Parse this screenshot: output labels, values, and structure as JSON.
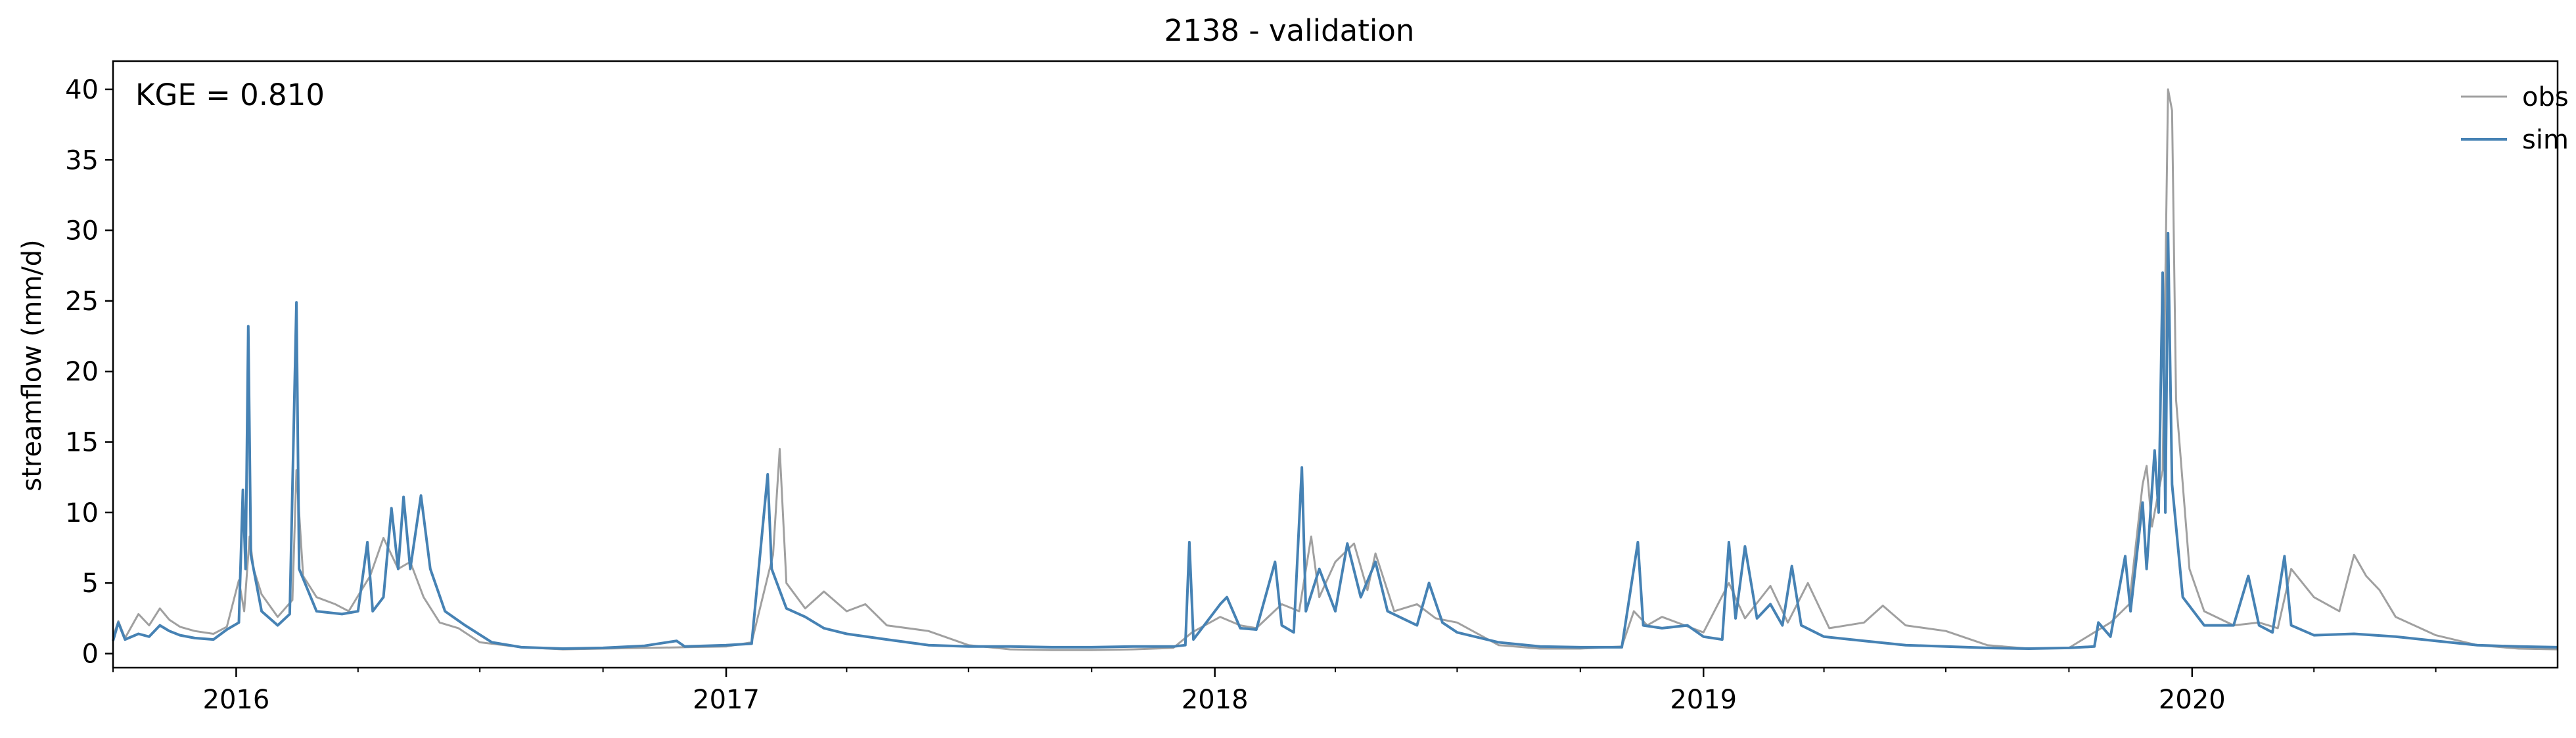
{
  "chart_data": {
    "type": "line",
    "title": "2138 - validation",
    "xlabel": "",
    "ylabel": "streamflow (mm/d)",
    "xlim": [
      "2015-10-01",
      "2020-09-30"
    ],
    "ylim": [
      -1,
      42
    ],
    "y_ticks": [
      0,
      5,
      10,
      15,
      20,
      25,
      30,
      35,
      40
    ],
    "x_ticks": [
      {
        "date": "2016-01-01",
        "label": "2016"
      },
      {
        "date": "2017-01-01",
        "label": "2017"
      },
      {
        "date": "2018-01-01",
        "label": "2018"
      },
      {
        "date": "2019-01-01",
        "label": "2019"
      },
      {
        "date": "2020-01-01",
        "label": "2020"
      }
    ],
    "grid": false,
    "legend_position": "top-right",
    "annotation": "KGE = 0.810",
    "series": [
      {
        "name": "obs",
        "color": "#a0a0a0",
        "points": [
          [
            "2015-10-01",
            1.2
          ],
          [
            "2015-10-05",
            2.3
          ],
          [
            "2015-10-10",
            1.1
          ],
          [
            "2015-10-20",
            2.8
          ],
          [
            "2015-10-28",
            2.0
          ],
          [
            "2015-11-05",
            3.2
          ],
          [
            "2015-11-12",
            2.4
          ],
          [
            "2015-11-20",
            1.9
          ],
          [
            "2015-12-01",
            1.6
          ],
          [
            "2015-12-15",
            1.4
          ],
          [
            "2015-12-25",
            1.9
          ],
          [
            "2016-01-03",
            5.2
          ],
          [
            "2016-01-07",
            3.0
          ],
          [
            "2016-01-11",
            8.3
          ],
          [
            "2016-01-14",
            6.0
          ],
          [
            "2016-01-20",
            4.2
          ],
          [
            "2016-02-01",
            2.6
          ],
          [
            "2016-02-12",
            3.8
          ],
          [
            "2016-02-15",
            13.0
          ],
          [
            "2016-02-20",
            5.5
          ],
          [
            "2016-03-01",
            4.0
          ],
          [
            "2016-03-15",
            3.5
          ],
          [
            "2016-03-25",
            3.0
          ],
          [
            "2016-04-10",
            5.5
          ],
          [
            "2016-04-20",
            8.2
          ],
          [
            "2016-05-01",
            6.0
          ],
          [
            "2016-05-10",
            6.5
          ],
          [
            "2016-05-20",
            4.0
          ],
          [
            "2016-06-01",
            2.2
          ],
          [
            "2016-06-15",
            1.8
          ],
          [
            "2016-07-01",
            0.8
          ],
          [
            "2016-08-01",
            0.45
          ],
          [
            "2016-09-01",
            0.3
          ],
          [
            "2016-10-01",
            0.35
          ],
          [
            "2016-11-01",
            0.4
          ],
          [
            "2016-12-01",
            0.45
          ],
          [
            "2017-01-01",
            0.5
          ],
          [
            "2017-01-20",
            0.8
          ],
          [
            "2017-02-05",
            7.0
          ],
          [
            "2017-02-10",
            14.5
          ],
          [
            "2017-02-15",
            5.0
          ],
          [
            "2017-03-01",
            3.2
          ],
          [
            "2017-03-15",
            4.4
          ],
          [
            "2017-04-01",
            3.0
          ],
          [
            "2017-04-15",
            3.5
          ],
          [
            "2017-05-01",
            2.0
          ],
          [
            "2017-06-01",
            1.6
          ],
          [
            "2017-07-01",
            0.6
          ],
          [
            "2017-08-01",
            0.3
          ],
          [
            "2017-09-01",
            0.25
          ],
          [
            "2017-10-01",
            0.25
          ],
          [
            "2017-11-01",
            0.3
          ],
          [
            "2017-12-01",
            0.4
          ],
          [
            "2017-12-15",
            1.5
          ],
          [
            "2018-01-05",
            2.6
          ],
          [
            "2018-01-20",
            2.0
          ],
          [
            "2018-02-01",
            1.8
          ],
          [
            "2018-02-20",
            3.5
          ],
          [
            "2018-03-05",
            3.0
          ],
          [
            "2018-03-14",
            8.3
          ],
          [
            "2018-03-20",
            4.0
          ],
          [
            "2018-04-01",
            6.5
          ],
          [
            "2018-04-15",
            7.8
          ],
          [
            "2018-04-25",
            4.5
          ],
          [
            "2018-05-01",
            7.1
          ],
          [
            "2018-05-15",
            3.0
          ],
          [
            "2018-06-01",
            3.5
          ],
          [
            "2018-06-15",
            2.5
          ],
          [
            "2018-07-01",
            2.2
          ],
          [
            "2018-08-01",
            0.6
          ],
          [
            "2018-09-01",
            0.35
          ],
          [
            "2018-10-01",
            0.35
          ],
          [
            "2018-11-01",
            0.5
          ],
          [
            "2018-11-10",
            3.0
          ],
          [
            "2018-11-20",
            2.0
          ],
          [
            "2018-12-01",
            2.6
          ],
          [
            "2019-01-01",
            1.5
          ],
          [
            "2019-01-20",
            5.0
          ],
          [
            "2019-02-01",
            2.5
          ],
          [
            "2019-02-20",
            4.8
          ],
          [
            "2019-03-05",
            2.2
          ],
          [
            "2019-03-20",
            5.0
          ],
          [
            "2019-04-05",
            1.8
          ],
          [
            "2019-05-01",
            2.2
          ],
          [
            "2019-05-15",
            3.4
          ],
          [
            "2019-06-01",
            2.0
          ],
          [
            "2019-07-01",
            1.6
          ],
          [
            "2019-08-01",
            0.6
          ],
          [
            "2019-09-01",
            0.35
          ],
          [
            "2019-10-01",
            0.4
          ],
          [
            "2019-11-01",
            2.2
          ],
          [
            "2019-11-15",
            3.5
          ],
          [
            "2019-11-25",
            12.0
          ],
          [
            "2019-11-28",
            13.3
          ],
          [
            "2019-12-02",
            9.0
          ],
          [
            "2019-12-10",
            13.0
          ],
          [
            "2019-12-14",
            40.0
          ],
          [
            "2019-12-17",
            38.5
          ],
          [
            "2019-12-20",
            18.0
          ],
          [
            "2019-12-30",
            6.0
          ],
          [
            "2020-01-10",
            3.0
          ],
          [
            "2020-02-01",
            2.0
          ],
          [
            "2020-02-20",
            2.2
          ],
          [
            "2020-03-05",
            1.8
          ],
          [
            "2020-03-15",
            6.0
          ],
          [
            "2020-04-01",
            4.0
          ],
          [
            "2020-04-20",
            3.0
          ],
          [
            "2020-05-01",
            7.0
          ],
          [
            "2020-05-10",
            5.5
          ],
          [
            "2020-05-20",
            4.5
          ],
          [
            "2020-06-01",
            2.6
          ],
          [
            "2020-07-01",
            1.3
          ],
          [
            "2020-08-01",
            0.6
          ],
          [
            "2020-09-01",
            0.35
          ],
          [
            "2020-09-30",
            0.3
          ]
        ]
      },
      {
        "name": "sim",
        "color": "#4682b4",
        "points": [
          [
            "2015-10-01",
            0.9
          ],
          [
            "2015-10-05",
            2.2
          ],
          [
            "2015-10-10",
            1.0
          ],
          [
            "2015-10-20",
            1.4
          ],
          [
            "2015-10-28",
            1.2
          ],
          [
            "2015-11-05",
            2.0
          ],
          [
            "2015-11-12",
            1.6
          ],
          [
            "2015-11-20",
            1.3
          ],
          [
            "2015-12-01",
            1.1
          ],
          [
            "2015-12-15",
            1.0
          ],
          [
            "2015-12-25",
            1.7
          ],
          [
            "2016-01-03",
            2.2
          ],
          [
            "2016-01-06",
            11.6
          ],
          [
            "2016-01-08",
            6.0
          ],
          [
            "2016-01-10",
            23.2
          ],
          [
            "2016-01-12",
            7.0
          ],
          [
            "2016-01-20",
            3.0
          ],
          [
            "2016-02-01",
            2.0
          ],
          [
            "2016-02-10",
            2.8
          ],
          [
            "2016-02-15",
            24.9
          ],
          [
            "2016-02-17",
            6.0
          ],
          [
            "2016-03-01",
            3.0
          ],
          [
            "2016-03-20",
            2.8
          ],
          [
            "2016-04-01",
            3.0
          ],
          [
            "2016-04-08",
            7.9
          ],
          [
            "2016-04-12",
            3.0
          ],
          [
            "2016-04-20",
            4.0
          ],
          [
            "2016-04-26",
            10.3
          ],
          [
            "2016-05-01",
            6.0
          ],
          [
            "2016-05-05",
            11.1
          ],
          [
            "2016-05-10",
            6.0
          ],
          [
            "2016-05-18",
            11.2
          ],
          [
            "2016-05-25",
            6.0
          ],
          [
            "2016-06-05",
            3.0
          ],
          [
            "2016-06-20",
            2.0
          ],
          [
            "2016-07-10",
            0.8
          ],
          [
            "2016-08-01",
            0.45
          ],
          [
            "2016-09-01",
            0.35
          ],
          [
            "2016-10-01",
            0.4
          ],
          [
            "2016-11-01",
            0.55
          ],
          [
            "2016-11-25",
            0.9
          ],
          [
            "2016-12-01",
            0.5
          ],
          [
            "2017-01-01",
            0.6
          ],
          [
            "2017-01-20",
            0.7
          ],
          [
            "2017-02-01",
            12.7
          ],
          [
            "2017-02-04",
            6.0
          ],
          [
            "2017-02-15",
            3.2
          ],
          [
            "2017-03-01",
            2.6
          ],
          [
            "2017-03-15",
            1.8
          ],
          [
            "2017-04-01",
            1.4
          ],
          [
            "2017-05-01",
            1.0
          ],
          [
            "2017-06-01",
            0.6
          ],
          [
            "2017-07-01",
            0.5
          ],
          [
            "2017-08-01",
            0.5
          ],
          [
            "2017-09-01",
            0.45
          ],
          [
            "2017-10-01",
            0.45
          ],
          [
            "2017-11-01",
            0.5
          ],
          [
            "2017-12-01",
            0.5
          ],
          [
            "2017-12-10",
            0.6
          ],
          [
            "2017-12-13",
            7.9
          ],
          [
            "2017-12-16",
            1.0
          ],
          [
            "2018-01-05",
            3.5
          ],
          [
            "2018-01-10",
            4.0
          ],
          [
            "2018-01-20",
            1.8
          ],
          [
            "2018-02-01",
            1.7
          ],
          [
            "2018-02-15",
            6.5
          ],
          [
            "2018-02-20",
            2.0
          ],
          [
            "2018-03-01",
            1.5
          ],
          [
            "2018-03-07",
            13.2
          ],
          [
            "2018-03-10",
            3.0
          ],
          [
            "2018-03-20",
            6.0
          ],
          [
            "2018-04-01",
            3.0
          ],
          [
            "2018-04-10",
            7.8
          ],
          [
            "2018-04-20",
            4.0
          ],
          [
            "2018-05-01",
            6.5
          ],
          [
            "2018-05-10",
            3.0
          ],
          [
            "2018-06-01",
            2.0
          ],
          [
            "2018-06-10",
            5.0
          ],
          [
            "2018-06-20",
            2.2
          ],
          [
            "2018-07-01",
            1.5
          ],
          [
            "2018-08-01",
            0.8
          ],
          [
            "2018-09-01",
            0.5
          ],
          [
            "2018-10-01",
            0.45
          ],
          [
            "2018-11-01",
            0.45
          ],
          [
            "2018-11-13",
            7.9
          ],
          [
            "2018-11-17",
            2.0
          ],
          [
            "2018-12-01",
            1.8
          ],
          [
            "2018-12-20",
            2.0
          ],
          [
            "2019-01-01",
            1.2
          ],
          [
            "2019-01-15",
            1.0
          ],
          [
            "2019-01-20",
            7.9
          ],
          [
            "2019-01-25",
            2.5
          ],
          [
            "2019-02-01",
            7.6
          ],
          [
            "2019-02-10",
            2.5
          ],
          [
            "2019-02-20",
            3.5
          ],
          [
            "2019-03-01",
            2.0
          ],
          [
            "2019-03-08",
            6.2
          ],
          [
            "2019-03-15",
            2.0
          ],
          [
            "2019-04-01",
            1.2
          ],
          [
            "2019-05-01",
            0.9
          ],
          [
            "2019-06-01",
            0.6
          ],
          [
            "2019-07-01",
            0.5
          ],
          [
            "2019-08-01",
            0.4
          ],
          [
            "2019-09-01",
            0.35
          ],
          [
            "2019-10-01",
            0.4
          ],
          [
            "2019-10-20",
            0.5
          ],
          [
            "2019-10-23",
            2.2
          ],
          [
            "2019-11-01",
            1.2
          ],
          [
            "2019-11-12",
            6.9
          ],
          [
            "2019-11-16",
            3.0
          ],
          [
            "2019-11-25",
            10.7
          ],
          [
            "2019-11-28",
            6.0
          ],
          [
            "2019-12-04",
            14.4
          ],
          [
            "2019-12-07",
            10.0
          ],
          [
            "2019-12-10",
            27.0
          ],
          [
            "2019-12-12",
            10.0
          ],
          [
            "2019-12-14",
            29.8
          ],
          [
            "2019-12-17",
            12.0
          ],
          [
            "2019-12-25",
            4.0
          ],
          [
            "2020-01-10",
            2.0
          ],
          [
            "2020-02-01",
            2.0
          ],
          [
            "2020-02-12",
            5.5
          ],
          [
            "2020-02-20",
            2.0
          ],
          [
            "2020-03-01",
            1.5
          ],
          [
            "2020-03-10",
            6.9
          ],
          [
            "2020-03-15",
            2.0
          ],
          [
            "2020-04-01",
            1.3
          ],
          [
            "2020-05-01",
            1.4
          ],
          [
            "2020-06-01",
            1.2
          ],
          [
            "2020-07-01",
            0.9
          ],
          [
            "2020-08-01",
            0.6
          ],
          [
            "2020-09-01",
            0.5
          ],
          [
            "2020-09-30",
            0.45
          ]
        ]
      }
    ]
  }
}
